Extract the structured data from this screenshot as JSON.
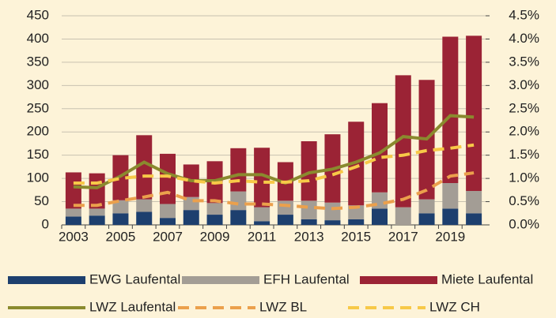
{
  "chart_data": {
    "type": "bar",
    "categories": [
      "2003",
      null,
      "2005",
      null,
      "2007",
      null,
      "2009",
      null,
      "2011",
      null,
      "2013",
      null,
      "2015",
      null,
      "2017",
      null,
      "2019",
      null
    ],
    "series": [
      {
        "name": "EWG Laufental",
        "color": "#1d3f6e",
        "values": [
          18,
          20,
          25,
          28,
          15,
          32,
          22,
          32,
          8,
          22,
          12,
          10,
          12,
          35,
          0,
          25,
          35,
          25
        ]
      },
      {
        "name": "EFH Laufental",
        "color": "#a39d95",
        "values": [
          17,
          15,
          28,
          27,
          30,
          28,
          25,
          40,
          30,
          30,
          40,
          38,
          30,
          35,
          38,
          30,
          55,
          48
        ]
      },
      {
        "name": "Miete Laufental",
        "color": "#9b2335",
        "values": [
          78,
          76,
          97,
          138,
          108,
          70,
          90,
          93,
          128,
          83,
          128,
          147,
          180,
          192,
          284,
          257,
          315,
          334
        ]
      },
      {
        "name": "LWZ Laufental",
        "color": "#8a8a2e",
        "axis": "y2",
        "style": "solid",
        "values": [
          0.82,
          0.8,
          1.05,
          1.35,
          1.1,
          0.95,
          0.95,
          1.08,
          1.08,
          0.9,
          1.12,
          1.2,
          1.35,
          1.55,
          1.9,
          1.85,
          2.35,
          2.32
        ]
      },
      {
        "name": "LWZ BL",
        "color": "#eba04c",
        "axis": "y2",
        "style": "dashed",
        "values": [
          0.42,
          0.42,
          0.52,
          0.6,
          0.7,
          0.52,
          0.52,
          0.45,
          0.45,
          0.42,
          0.38,
          0.35,
          0.38,
          0.45,
          0.55,
          0.75,
          1.05,
          1.12
        ]
      },
      {
        "name": "LWZ CH",
        "color": "#f7c948",
        "axis": "y2",
        "style": "dashed",
        "values": [
          0.9,
          0.9,
          1.0,
          1.05,
          1.05,
          0.95,
          0.9,
          0.95,
          0.92,
          0.92,
          0.95,
          1.08,
          1.25,
          1.45,
          1.5,
          1.6,
          1.65,
          1.72
        ]
      }
    ],
    "stacked": true,
    "grid": true,
    "ylim": [
      0,
      450
    ],
    "yticks": [
      0,
      50,
      100,
      150,
      200,
      250,
      300,
      350,
      400,
      450
    ],
    "y2lim": [
      0,
      4.5
    ],
    "y2ticks": [
      {
        "value": 0,
        "label": "0.0%"
      },
      {
        "value": 0.5,
        "label": "0.5%"
      },
      {
        "value": 1,
        "label": "1.0%"
      },
      {
        "value": 1.5,
        "label": "1.5%"
      },
      {
        "value": 2,
        "label": "2.0%"
      },
      {
        "value": 2.5,
        "label": "2.5%"
      },
      {
        "value": 3,
        "label": "3.0%"
      },
      {
        "value": 3.5,
        "label": "3.5%"
      },
      {
        "value": 4,
        "label": "4.0%"
      },
      {
        "value": 4.5,
        "label": "4.5%"
      }
    ]
  }
}
